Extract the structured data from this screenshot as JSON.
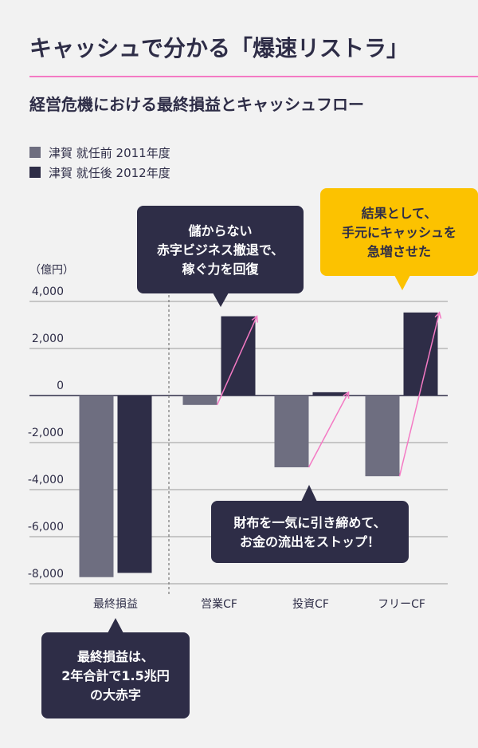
{
  "title": "キャッシュで分かる「爆速リストラ」",
  "subtitle": "経営危機における最終損益とキャッシュフロー",
  "accent_color": "#f47ac4",
  "chart_data": {
    "type": "bar",
    "unit_label": "（億円）",
    "categories": [
      "最終損益",
      "営業CF",
      "投資CF",
      "フリーCF"
    ],
    "series": [
      {
        "name": "津賀 就任前 2011年度",
        "color": "#6e6e80",
        "values": [
          -7720,
          -400,
          -3050,
          -3430
        ]
      },
      {
        "name": "津賀 就任後 2012年度",
        "color": "#2e2d47",
        "values": [
          -7540,
          3370,
          140,
          3530
        ]
      }
    ],
    "ylim": [
      -8000,
      4000
    ],
    "yticks": [
      4000,
      2000,
      0,
      -2000,
      -4000,
      -6000,
      -8000
    ],
    "ytick_labels": [
      "4,000",
      "2,000",
      "0",
      "-2,000",
      "-4,000",
      "-6,000",
      "-8,000"
    ],
    "grid": true,
    "legend_position": "top-left"
  },
  "callouts": [
    {
      "lines": [
        "儲からない",
        "赤字ビジネス撤退で、",
        "稼ぐ力を回復"
      ],
      "color": "#2e2d47",
      "text_color": "#ffffff"
    },
    {
      "lines": [
        "結果として、",
        "手元にキャッシュを",
        "急増させた"
      ],
      "color": "#fcc200",
      "text_color": "#2e2d47"
    },
    {
      "lines": [
        "財布を一気に引き締めて、",
        "お金の流出をストップ！"
      ],
      "color": "#2e2d47",
      "text_color": "#ffffff"
    },
    {
      "lines": [
        "最終損益は、",
        "2年合計で1.5兆円",
        "の大赤字"
      ],
      "color": "#2e2d47",
      "text_color": "#ffffff"
    }
  ]
}
